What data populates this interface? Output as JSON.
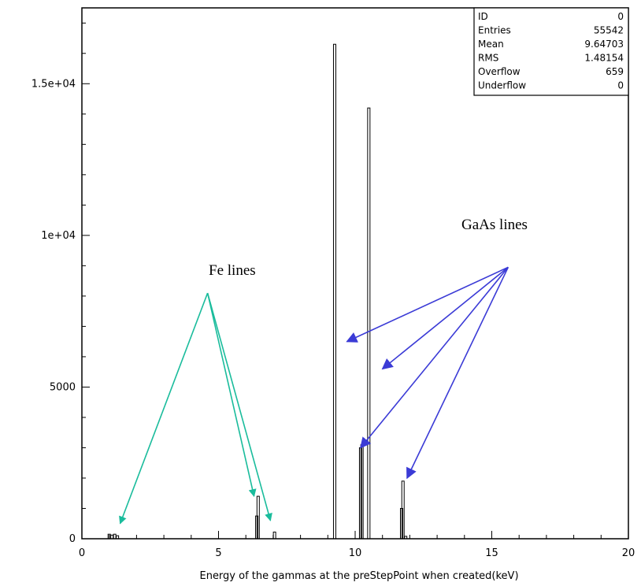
{
  "chart_data": {
    "type": "bar",
    "title": "",
    "xlabel": "Energy of the gammas at the preStepPoint when created(keV)",
    "ylabel": "",
    "xlim": [
      0,
      20
    ],
    "ylim": [
      0,
      17500
    ],
    "grid": false,
    "x_ticks": [
      {
        "value": 0,
        "label": "0"
      },
      {
        "value": 5,
        "label": "5"
      },
      {
        "value": 10,
        "label": "10"
      },
      {
        "value": 15,
        "label": "15"
      },
      {
        "value": 20,
        "label": "20"
      }
    ],
    "y_ticks": [
      {
        "value": 0,
        "label": "0"
      },
      {
        "value": 5000,
        "label": "5000"
      },
      {
        "value": 10000,
        "label": "1e+04"
      },
      {
        "value": 15000,
        "label": "1.5e+04"
      }
    ],
    "bins": [
      {
        "x": 1.0,
        "value": 150
      },
      {
        "x": 1.1,
        "value": 120
      },
      {
        "x": 1.2,
        "value": 150
      },
      {
        "x": 1.3,
        "value": 100
      },
      {
        "x": 6.4,
        "value": 750
      },
      {
        "x": 6.45,
        "value": 1400
      },
      {
        "x": 7.05,
        "value": 220
      },
      {
        "x": 9.25,
        "value": 16300
      },
      {
        "x": 10.2,
        "value": 3000
      },
      {
        "x": 10.25,
        "value": 3100
      },
      {
        "x": 10.5,
        "value": 14200
      },
      {
        "x": 11.7,
        "value": 1000
      },
      {
        "x": 11.75,
        "value": 1900
      },
      {
        "x": 11.85,
        "value": 80
      }
    ],
    "stats_box": {
      "position": "top-right",
      "rows": [
        {
          "label": "ID",
          "value": "0"
        },
        {
          "label": "Entries",
          "value": "55542"
        },
        {
          "label": "Mean",
          "value": "9.64703"
        },
        {
          "label": "RMS",
          "value": "1.48154"
        },
        {
          "label": "Overflow",
          "value": "659"
        },
        {
          "label": "Underflow",
          "value": "0"
        }
      ]
    },
    "annotations": [
      {
        "text": "Fe  lines",
        "color": "#1abc9c",
        "label_at": {
          "x": 5.5,
          "y": 8700
        },
        "origin": {
          "x": 4.6,
          "y": 8100
        },
        "targets": [
          {
            "x": 1.4,
            "y": 500
          },
          {
            "x": 6.3,
            "y": 1400
          },
          {
            "x": 6.9,
            "y": 600
          }
        ]
      },
      {
        "text": "GaAs lines",
        "color": "#3b3bd6",
        "label_at": {
          "x": 15.1,
          "y": 10200
        },
        "origin": {
          "x": 15.6,
          "y": 8950
        },
        "targets": [
          {
            "x": 9.7,
            "y": 6500
          },
          {
            "x": 11.0,
            "y": 5600
          },
          {
            "x": 10.2,
            "y": 3000
          },
          {
            "x": 11.9,
            "y": 2000
          }
        ]
      }
    ]
  }
}
